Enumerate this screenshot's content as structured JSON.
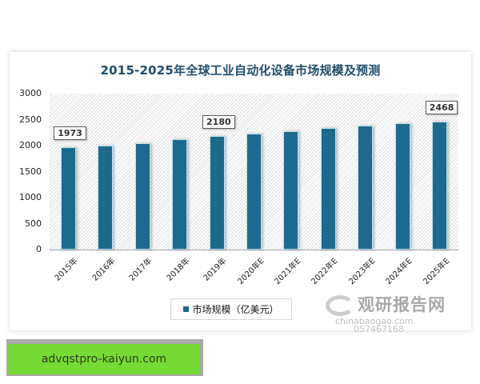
{
  "chart_data": {
    "type": "bar",
    "title": "2015-2025年全球工业自动化设备市场规模及预测",
    "categories": [
      "2015年",
      "2016年",
      "2017年",
      "2018年",
      "2019年",
      "2020年E",
      "2021年E",
      "2022年E",
      "2023年E",
      "2024年E",
      "2025年E"
    ],
    "series": [
      {
        "name": "市场规模（亿美元）",
        "values": [
          1973,
          2000,
          2045,
          2120,
          2180,
          2230,
          2275,
          2335,
          2380,
          2425,
          2468
        ]
      }
    ],
    "data_labels": [
      {
        "index": 0,
        "text": "1973"
      },
      {
        "index": 4,
        "text": "2180"
      },
      {
        "index": 10,
        "text": "2468"
      }
    ],
    "xlabel": "",
    "ylabel": "",
    "ylim": [
      0,
      3000
    ],
    "yticks": [
      "0",
      "500",
      "1000",
      "1500",
      "2000",
      "2500",
      "3000"
    ],
    "grid": false,
    "legend_position": "bottom",
    "colors": {
      "bar": "#1c6a8e",
      "title": "#1f4e6b"
    }
  },
  "legend": {
    "label": "市场规模（亿美元）"
  },
  "watermark": {
    "brand": "观研报告网",
    "url": "chinabaogao.com",
    "phone": "057467168"
  },
  "banner": {
    "text": "advqstpro-kaiyun.com"
  }
}
